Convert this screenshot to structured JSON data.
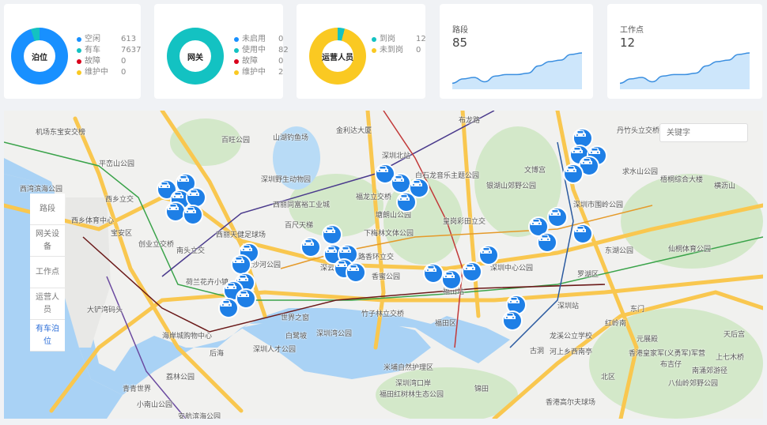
{
  "cards": [
    {
      "title": "泊位",
      "legend": [
        {
          "label": "空闲",
          "value": "613",
          "color": "#1890ff"
        },
        {
          "label": "有车",
          "value": "7637",
          "color": "#13c2c2"
        },
        {
          "label": "故障",
          "value": "0",
          "color": "#d9001b"
        },
        {
          "label": "维护中",
          "value": "0",
          "color": "#fac922"
        }
      ]
    },
    {
      "title": "网关",
      "legend": [
        {
          "label": "未启用",
          "value": "0",
          "color": "#1890ff"
        },
        {
          "label": "使用中",
          "value": "82",
          "color": "#13c2c2"
        },
        {
          "label": "故障",
          "value": "0",
          "color": "#d9001b"
        },
        {
          "label": "维护中",
          "value": "2",
          "color": "#fac922"
        }
      ]
    },
    {
      "title": "运营人员",
      "legend": [
        {
          "label": "到岗",
          "value": "12",
          "color": "#13c2c2"
        },
        {
          "label": "未到岗",
          "value": "0",
          "color": "#fac922"
        }
      ]
    }
  ],
  "donut_colors": [
    [
      "#1890ff",
      "#13c2c2"
    ],
    [
      "#13c2c2",
      "#13c2c2"
    ],
    [
      "#fac922",
      "#13c2c2"
    ]
  ],
  "stats": [
    {
      "title": "路段",
      "value": "85"
    },
    {
      "title": "工作点",
      "value": "12"
    }
  ],
  "sparkline": [
    2,
    5,
    6,
    3,
    7,
    8,
    8,
    9,
    14,
    17,
    18,
    22,
    23
  ],
  "map": {
    "search_placeholder": "关键字",
    "menu": [
      {
        "label": "路段"
      },
      {
        "label": "网关设备"
      },
      {
        "label": "工作点"
      },
      {
        "label": "运营人员"
      },
      {
        "label": "有车泊位",
        "active": true
      }
    ],
    "labels": [
      "机场东宝安交榜",
      "平峦山公园",
      "西湾滨海公园",
      "西乡立交",
      "西乡体育中心",
      "宝安区",
      "大铲湾码头",
      "创业立交桥",
      "南头立交",
      "西丽天健足球场",
      "百旺公园",
      "山湖钓鱼场",
      "金利达大厦",
      "深圳野生动物园",
      "西丽同富裕工业城",
      "百尺天梯",
      "深圳北站",
      "白石龙音乐主题公园",
      "福龙立交桥",
      "塘朗山公园",
      "下梅林文体公园",
      "福龙路香环立交",
      "香蜜公园",
      "皇岗彩田立交",
      "布龙路",
      "文博宫",
      "银湖山郊野公园",
      "深圳市围岭公园",
      "深圳中心公园",
      "福田站",
      "福田区",
      "深圳湾公园",
      "世界之窗",
      "后海",
      "荔林公园",
      "青青世界",
      "海岸城购物中心",
      "深圳人才公园",
      "深圳站",
      "罗湖区",
      "红岭南",
      "东门",
      "元展殿",
      "香港皇家军(义勇军)军营",
      "布吉仔",
      "龙溪公立学校",
      "河上乡西南亭",
      "古洞",
      "上七木桥",
      "北区",
      "梧桐综合大楼",
      "横沥山",
      "仙桐体育公园",
      "天后宫",
      "南涌郊游径",
      "八仙岭郊野公园",
      "深圳湾口岸",
      "米埔自然护理区",
      "福田红树林生态公园",
      "锦田",
      "香港高尔夫球场",
      "丹竹头立交桥",
      "求水山公园",
      "东湖公园",
      "荷兰花卉小镇",
      "大沙河公园",
      "深云立交",
      "白鹭坡",
      "竹子林立交桥",
      "小南山公园",
      "安航滨海公园"
    ]
  }
}
